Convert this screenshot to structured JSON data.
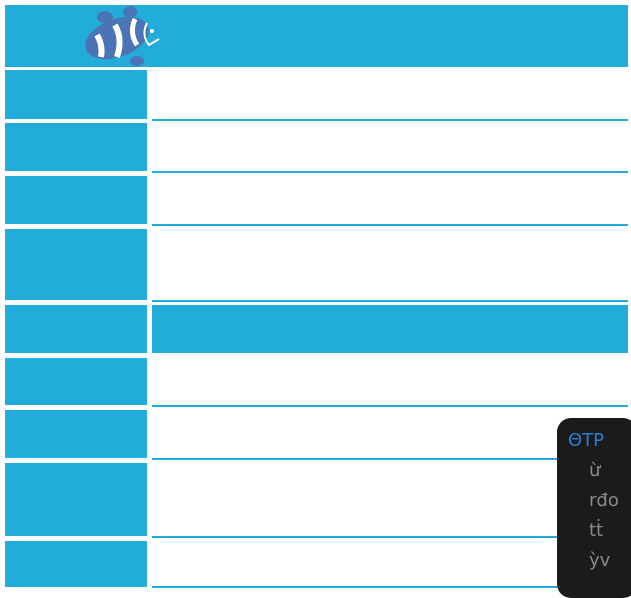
{
  "panel": {
    "title": "ΘTP",
    "items": [
      "ừ",
      "rđo",
      "tṫ",
      "ỳv"
    ]
  }
}
